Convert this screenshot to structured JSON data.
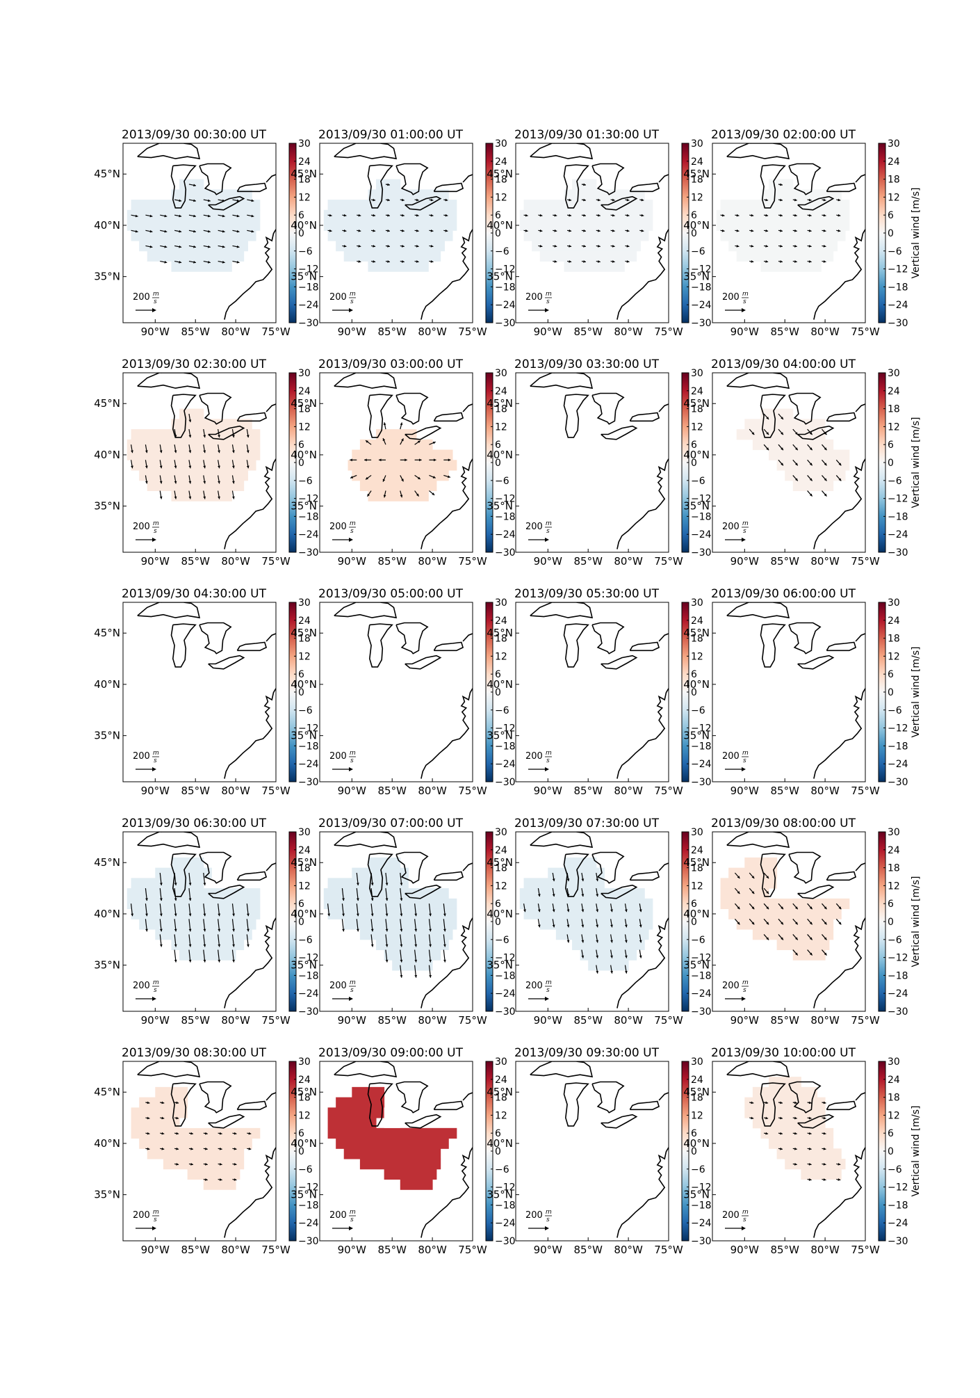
{
  "colors": {
    "diverging_stops": [
      "#053061",
      "#2166ac",
      "#4393c3",
      "#92c5de",
      "#d1e5f0",
      "#f7f7f7",
      "#fddbc7",
      "#f4a582",
      "#d6604d",
      "#b2182b",
      "#67001f"
    ],
    "coastline": "#000000",
    "arrow": "#000000"
  },
  "chart_data": [
    {
      "type": "heatmap",
      "title": "2013/09/30 00:30:00 UT",
      "colorbar_label": "",
      "region": "A",
      "value": -3,
      "arrows": "east"
    },
    {
      "type": "heatmap",
      "title": "2013/09/30 01:00:00 UT",
      "colorbar_label": "",
      "region": "A",
      "value": -3,
      "arrows": "east-small"
    },
    {
      "type": "heatmap",
      "title": "2013/09/30 01:30:00 UT",
      "colorbar_label": "",
      "region": "A",
      "value": -1,
      "arrows": "east-small"
    },
    {
      "type": "heatmap",
      "title": "2013/09/30 02:00:00 UT",
      "colorbar_label": "Vertical wind [m/s]",
      "region": "A",
      "value": -0.5,
      "arrows": "east-small"
    },
    {
      "type": "heatmap",
      "title": "2013/09/30 02:30:00 UT",
      "colorbar_label": "",
      "region": "A",
      "value": 3,
      "arrows": "south"
    },
    {
      "type": "heatmap",
      "title": "2013/09/30 03:00:00 UT",
      "colorbar_label": "",
      "region": "B",
      "value": 5,
      "arrows": "radial"
    },
    {
      "type": "heatmap",
      "title": "2013/09/30 03:30:00 UT",
      "colorbar_label": "",
      "region": "none",
      "value": 0,
      "arrows": "none"
    },
    {
      "type": "heatmap",
      "title": "2013/09/30 04:00:00 UT",
      "colorbar_label": "Vertical wind [m/s]",
      "region": "C",
      "value": 1.5,
      "arrows": "southeast"
    },
    {
      "type": "heatmap",
      "title": "2013/09/30 04:30:00 UT",
      "colorbar_label": "",
      "region": "none",
      "value": 0,
      "arrows": "none"
    },
    {
      "type": "heatmap",
      "title": "2013/09/30 05:00:00 UT",
      "colorbar_label": "",
      "region": "none",
      "value": 0,
      "arrows": "none"
    },
    {
      "type": "heatmap",
      "title": "2013/09/30 05:30:00 UT",
      "colorbar_label": "",
      "region": "none",
      "value": 0,
      "arrows": "none"
    },
    {
      "type": "heatmap",
      "title": "2013/09/30 06:00:00 UT",
      "colorbar_label": "Vertical wind [m/s]",
      "region": "none",
      "value": 0,
      "arrows": "none"
    },
    {
      "type": "heatmap",
      "title": "2013/09/30 06:30:00 UT",
      "colorbar_label": "",
      "region": "D",
      "value": -3.5,
      "arrows": "south-long"
    },
    {
      "type": "heatmap",
      "title": "2013/09/30 07:00:00 UT",
      "colorbar_label": "",
      "region": "E",
      "value": -4,
      "arrows": "south-long"
    },
    {
      "type": "heatmap",
      "title": "2013/09/30 07:30:00 UT",
      "colorbar_label": "",
      "region": "E",
      "value": -3.5,
      "arrows": "south"
    },
    {
      "type": "heatmap",
      "title": "2013/09/30 08:00:00 UT",
      "colorbar_label": "Vertical wind [m/s]",
      "region": "F",
      "value": 4,
      "arrows": "southeast"
    },
    {
      "type": "heatmap",
      "title": "2013/09/30 08:30:00 UT",
      "colorbar_label": "",
      "region": "F",
      "value": 4,
      "arrows": "east-small"
    },
    {
      "type": "heatmap",
      "title": "2013/09/30 09:00:00 UT",
      "colorbar_label": "",
      "region": "F",
      "value": 22,
      "arrows": "none"
    },
    {
      "type": "heatmap",
      "title": "2013/09/30 09:30:00 UT",
      "colorbar_label": "",
      "region": "none",
      "value": 0,
      "arrows": "none"
    },
    {
      "type": "heatmap",
      "title": "2013/09/30 10:00:00 UT",
      "colorbar_label": "Vertical wind [m/s]",
      "region": "G",
      "value": 3,
      "arrows": "east-small"
    }
  ],
  "shared": {
    "x_ticks": [
      "90°W",
      "85°W",
      "80°W",
      "75°W"
    ],
    "y_ticks": [
      "45°N",
      "40°N",
      "35°N"
    ],
    "colorbar_ticks": [
      "30",
      "24",
      "18",
      "12",
      "6",
      "0",
      "−6",
      "−12",
      "−18",
      "−24",
      "−30"
    ],
    "colorbar_range": [
      -30,
      30
    ],
    "lon_range": [
      -94,
      -75
    ],
    "lat_range": [
      30.5,
      48
    ],
    "scale_arrow_label": "200",
    "scale_arrow_unit_num": "m",
    "scale_arrow_unit_den": "s"
  }
}
